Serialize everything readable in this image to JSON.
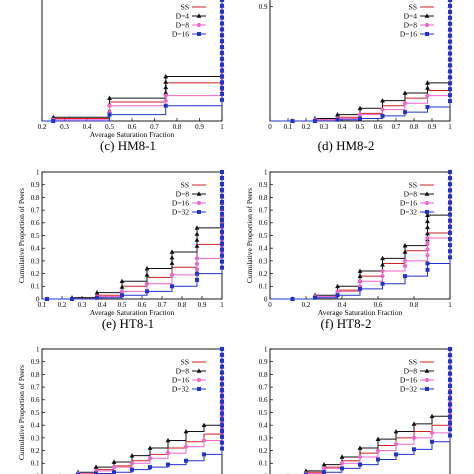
{
  "captions": [
    "(c) HM8-1",
    "(d) HM8-2",
    "(e) HT8-1",
    "(f) HT8-2"
  ],
  "colors": {
    "SS": "#cc2222",
    "D_small": "#111111",
    "D_mid": "#ee66cc",
    "D_large": "#2233cc"
  },
  "chart_data": [
    {
      "type": "line",
      "title": "",
      "xlabel": "Average Saturation Fraction",
      "ylabel": "",
      "xlim": [
        0.2,
        1.0
      ],
      "ylim": [
        0,
        1
      ],
      "xticks": [
        "0.2",
        "0.3",
        "0.4",
        "0.5",
        "0.6",
        "0.7",
        "0.8",
        "0.9",
        "1"
      ],
      "yticks": [],
      "legend_position": "top-right",
      "series": [
        {
          "name": "SS",
          "color_key": "SS",
          "marker": "none",
          "x": [
            0.25,
            0.5,
            0.75,
            1.0
          ],
          "y": [
            0.02,
            0.15,
            0.3,
            1.0
          ]
        },
        {
          "name": "D=4",
          "color_key": "D_small",
          "marker": "triangle",
          "x": [
            0.25,
            0.5,
            0.75,
            1.0
          ],
          "y": [
            0.03,
            0.18,
            0.35,
            1.0
          ]
        },
        {
          "name": "D=8",
          "color_key": "D_mid",
          "marker": "circle",
          "x": [
            0.25,
            0.5,
            0.75,
            1.0
          ],
          "y": [
            0.01,
            0.12,
            0.2,
            1.0
          ]
        },
        {
          "name": "D=16",
          "color_key": "D_large",
          "marker": "square",
          "x": [
            0.25,
            0.5,
            0.75,
            1.0
          ],
          "y": [
            0.0,
            0.05,
            0.12,
            1.0
          ]
        }
      ]
    },
    {
      "type": "line",
      "title": "",
      "xlabel": "",
      "ylabel": "",
      "xlim": [
        0,
        1
      ],
      "ylim": [
        0,
        1
      ],
      "xticks": [
        "0",
        "0.1",
        "0.2",
        "0.3",
        "0.4",
        "0.5",
        "0.6",
        "0.7",
        "0.8",
        "0.9",
        "1"
      ],
      "yticks": [
        "0.9"
      ],
      "legend_position": "top-right",
      "series": [
        {
          "name": "SS",
          "color_key": "SS",
          "marker": "none",
          "x": [
            0.125,
            0.25,
            0.375,
            0.5,
            0.625,
            0.75,
            0.875,
            1.0
          ],
          "y": [
            0.0,
            0.01,
            0.03,
            0.06,
            0.12,
            0.18,
            0.24,
            1.0
          ]
        },
        {
          "name": "D=4",
          "color_key": "D_small",
          "marker": "triangle",
          "x": [
            0.125,
            0.25,
            0.375,
            0.5,
            0.625,
            0.75,
            0.875,
            1.0
          ],
          "y": [
            0.0,
            0.02,
            0.05,
            0.1,
            0.16,
            0.22,
            0.3,
            1.0
          ]
        },
        {
          "name": "D=8",
          "color_key": "D_mid",
          "marker": "circle",
          "x": [
            0.125,
            0.25,
            0.375,
            0.5,
            0.625,
            0.75,
            0.875,
            1.0
          ],
          "y": [
            0.0,
            0.01,
            0.02,
            0.05,
            0.09,
            0.14,
            0.2,
            1.0
          ]
        },
        {
          "name": "D=16",
          "color_key": "D_large",
          "marker": "square",
          "x": [
            0.125,
            0.25,
            0.375,
            0.5,
            0.625,
            0.75,
            0.875,
            1.0
          ],
          "y": [
            0.0,
            0.0,
            0.01,
            0.02,
            0.04,
            0.07,
            0.11,
            1.0
          ]
        }
      ]
    },
    {
      "type": "line",
      "title": "",
      "xlabel": "Average Saturation Fraction",
      "ylabel": "Cumulative Proportion of Peers",
      "xlim": [
        0.1,
        1.0
      ],
      "ylim": [
        0,
        1
      ],
      "xticks": [
        "0.1",
        "0.2",
        "0.3",
        "0.4",
        "0.5",
        "0.6",
        "0.7",
        "0.8",
        "0.9",
        "1"
      ],
      "yticks": [
        "0",
        "0.1",
        "0.2",
        "0.3",
        "0.4",
        "0.5",
        "0.6",
        "0.7",
        "0.8",
        "0.9",
        "1"
      ],
      "legend_position": "top-right",
      "series": [
        {
          "name": "SS",
          "color_key": "SS",
          "marker": "none",
          "x": [
            0.125,
            0.25,
            0.375,
            0.5,
            0.625,
            0.75,
            0.875,
            1.0
          ],
          "y": [
            0.0,
            0.01,
            0.03,
            0.1,
            0.17,
            0.25,
            0.43,
            1.0
          ]
        },
        {
          "name": "D=8",
          "color_key": "D_small",
          "marker": "triangle",
          "x": [
            0.125,
            0.25,
            0.375,
            0.5,
            0.625,
            0.75,
            0.875,
            1.0
          ],
          "y": [
            0.0,
            0.01,
            0.05,
            0.14,
            0.24,
            0.37,
            0.56,
            1.0
          ]
        },
        {
          "name": "D=16",
          "color_key": "D_mid",
          "marker": "circle",
          "x": [
            0.125,
            0.25,
            0.375,
            0.5,
            0.625,
            0.75,
            0.875,
            1.0
          ],
          "y": [
            0.0,
            0.0,
            0.02,
            0.06,
            0.12,
            0.19,
            0.32,
            1.0
          ]
        },
        {
          "name": "D=32",
          "color_key": "D_large",
          "marker": "square",
          "x": [
            0.125,
            0.25,
            0.375,
            0.5,
            0.625,
            0.75,
            0.875,
            1.0
          ],
          "y": [
            0.0,
            0.0,
            0.01,
            0.03,
            0.06,
            0.1,
            0.2,
            1.0
          ]
        }
      ]
    },
    {
      "type": "line",
      "title": "",
      "xlabel": "Average Saturation Fraction",
      "ylabel": "Cumulative Proportion of Peers",
      "xlim": [
        0,
        1
      ],
      "ylim": [
        0,
        1
      ],
      "xticks": [
        "0",
        "0.2",
        "0.4",
        "0.6",
        "0.8",
        "1"
      ],
      "yticks": [
        "0",
        "0.1",
        "0.2",
        "0.3",
        "0.4",
        "0.5",
        "0.6",
        "0.7",
        "0.8",
        "0.9",
        "1"
      ],
      "legend_position": "top-right",
      "series": [
        {
          "name": "SS",
          "color_key": "SS",
          "marker": "none",
          "x": [
            0.125,
            0.25,
            0.375,
            0.5,
            0.625,
            0.75,
            0.875,
            1.0
          ],
          "y": [
            0.0,
            0.02,
            0.07,
            0.18,
            0.28,
            0.38,
            0.52,
            1.0
          ]
        },
        {
          "name": "D=8",
          "color_key": "D_small",
          "marker": "triangle",
          "x": [
            0.125,
            0.25,
            0.375,
            0.5,
            0.625,
            0.75,
            0.875,
            1.0
          ],
          "y": [
            0.0,
            0.03,
            0.1,
            0.22,
            0.32,
            0.42,
            0.66,
            1.0
          ]
        },
        {
          "name": "D=16",
          "color_key": "D_mid",
          "marker": "circle",
          "x": [
            0.125,
            0.25,
            0.375,
            0.5,
            0.625,
            0.75,
            0.875,
            1.0
          ],
          "y": [
            0.0,
            0.02,
            0.06,
            0.14,
            0.22,
            0.3,
            0.48,
            1.0
          ]
        },
        {
          "name": "D=32",
          "color_key": "D_large",
          "marker": "square",
          "x": [
            0.125,
            0.25,
            0.375,
            0.5,
            0.625,
            0.75,
            0.875,
            1.0
          ],
          "y": [
            0.0,
            0.01,
            0.03,
            0.08,
            0.12,
            0.18,
            0.28,
            1.0
          ]
        }
      ]
    },
    {
      "type": "line",
      "title": "",
      "xlabel": "",
      "ylabel": "Cumulative Proportion of Peers",
      "xlim": [
        0,
        1
      ],
      "ylim": [
        0,
        1
      ],
      "xticks": [],
      "yticks": [
        "0",
        "0.1",
        "0.2",
        "0.3",
        "0.4",
        "0.5",
        "0.6",
        "0.7",
        "0.8",
        "0.9",
        "1"
      ],
      "legend_position": "top-right",
      "series": [
        {
          "name": "SS",
          "color_key": "SS",
          "marker": "none",
          "x": [
            0.1,
            0.2,
            0.3,
            0.4,
            0.5,
            0.6,
            0.7,
            0.8,
            0.9,
            1.0
          ],
          "y": [
            0.0,
            0.02,
            0.05,
            0.08,
            0.12,
            0.17,
            0.22,
            0.27,
            0.33,
            1.0
          ]
        },
        {
          "name": "D=8",
          "color_key": "D_small",
          "marker": "triangle",
          "x": [
            0.1,
            0.2,
            0.3,
            0.4,
            0.5,
            0.6,
            0.7,
            0.8,
            0.9,
            1.0
          ],
          "y": [
            0.0,
            0.03,
            0.07,
            0.11,
            0.16,
            0.22,
            0.28,
            0.35,
            0.4,
            1.0
          ]
        },
        {
          "name": "D=16",
          "color_key": "D_mid",
          "marker": "circle",
          "x": [
            0.1,
            0.2,
            0.3,
            0.4,
            0.5,
            0.6,
            0.7,
            0.8,
            0.9,
            1.0
          ],
          "y": [
            0.0,
            0.02,
            0.04,
            0.07,
            0.1,
            0.14,
            0.18,
            0.23,
            0.28,
            1.0
          ]
        },
        {
          "name": "D=32",
          "color_key": "D_large",
          "marker": "square",
          "x": [
            0.1,
            0.2,
            0.3,
            0.4,
            0.5,
            0.6,
            0.7,
            0.8,
            0.9,
            1.0
          ],
          "y": [
            0.0,
            0.01,
            0.02,
            0.03,
            0.05,
            0.07,
            0.09,
            0.12,
            0.17,
            1.0
          ]
        }
      ]
    },
    {
      "type": "line",
      "title": "",
      "xlabel": "",
      "ylabel": "",
      "xlim": [
        0,
        1
      ],
      "ylim": [
        0,
        1
      ],
      "xticks": [],
      "yticks": [
        "0",
        "0.1",
        "0.2",
        "0.3",
        "0.4",
        "0.5",
        "0.6",
        "0.7",
        "0.8",
        "0.9",
        "1"
      ],
      "legend_position": "top-right",
      "series": [
        {
          "name": "SS",
          "color_key": "SS",
          "marker": "none",
          "x": [
            0.1,
            0.2,
            0.3,
            0.4,
            0.5,
            0.6,
            0.7,
            0.8,
            0.9,
            1.0
          ],
          "y": [
            0.0,
            0.03,
            0.07,
            0.12,
            0.18,
            0.24,
            0.3,
            0.35,
            0.4,
            1.0
          ]
        },
        {
          "name": "D=8",
          "color_key": "D_small",
          "marker": "triangle",
          "x": [
            0.1,
            0.2,
            0.3,
            0.4,
            0.5,
            0.6,
            0.7,
            0.8,
            0.9,
            1.0
          ],
          "y": [
            0.0,
            0.04,
            0.09,
            0.15,
            0.22,
            0.29,
            0.35,
            0.41,
            0.47,
            1.0
          ]
        },
        {
          "name": "D=16",
          "color_key": "D_mid",
          "marker": "circle",
          "x": [
            0.1,
            0.2,
            0.3,
            0.4,
            0.5,
            0.6,
            0.7,
            0.8,
            0.9,
            1.0
          ],
          "y": [
            0.0,
            0.02,
            0.06,
            0.1,
            0.15,
            0.2,
            0.25,
            0.3,
            0.34,
            1.0
          ]
        },
        {
          "name": "D=32",
          "color_key": "D_large",
          "marker": "square",
          "x": [
            0.1,
            0.2,
            0.3,
            0.4,
            0.5,
            0.6,
            0.7,
            0.8,
            0.9,
            1.0
          ],
          "y": [
            0.0,
            0.01,
            0.03,
            0.06,
            0.09,
            0.13,
            0.17,
            0.21,
            0.27,
            1.0
          ]
        }
      ]
    }
  ]
}
